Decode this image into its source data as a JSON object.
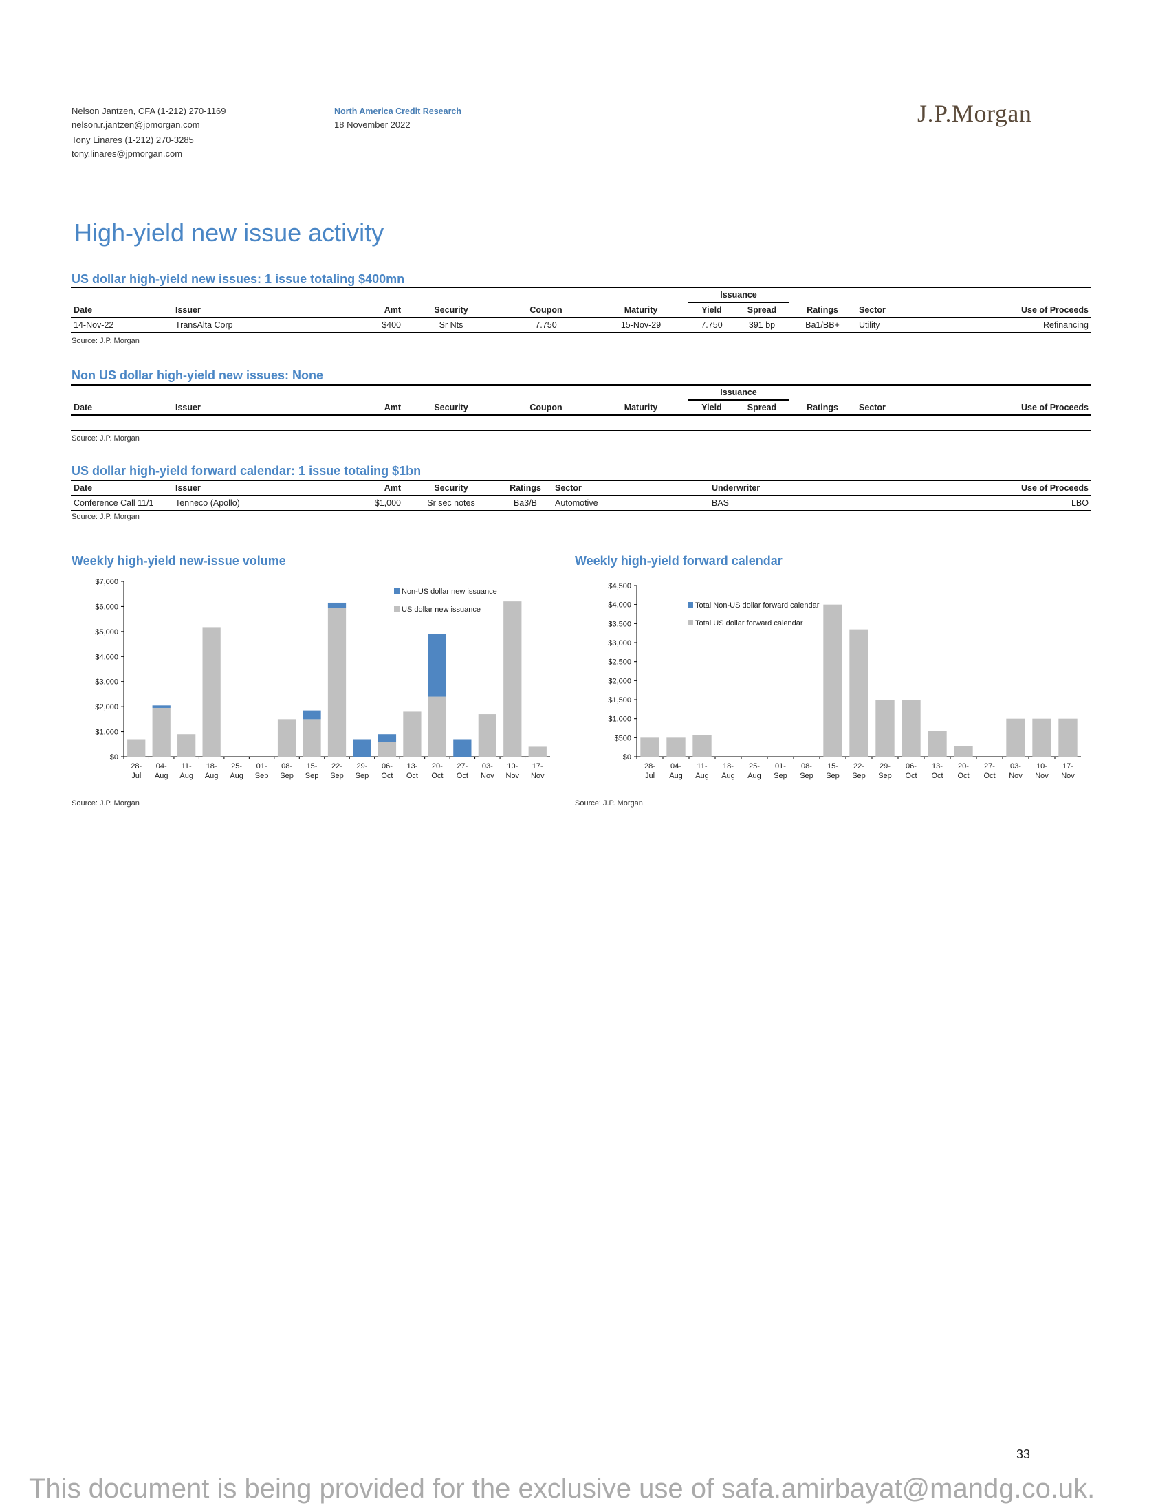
{
  "header": {
    "author1": "Nelson Jantzen, CFA (1-212) 270-1169",
    "email1": "nelson.r.jantzen@jpmorgan.com",
    "author2": "Tony Linares (1-212) 270-3285",
    "email2": "tony.linares@jpmorgan.com",
    "dept": "North America Credit Research",
    "date": "18 November 2022",
    "logo": "J.P.Morgan"
  },
  "page_title": "High-yield new issue activity",
  "table1": {
    "title": "US dollar high-yield new issues: 1 issue totaling $400mn",
    "group_header": "Issuance",
    "columns": [
      "Date",
      "Issuer",
      "Amt",
      "Security",
      "Coupon",
      "Maturity",
      "Yield",
      "Spread",
      "Ratings",
      "Sector",
      "Use of Proceeds"
    ],
    "row": [
      "14-Nov-22",
      "TransAlta Corp",
      "$400",
      "Sr Nts",
      "7.750",
      "15-Nov-29",
      "7.750",
      "391 bp",
      "Ba1/BB+",
      "Utility",
      "Refinancing"
    ],
    "source": "Source: J.P. Morgan"
  },
  "table2": {
    "title": "Non US dollar high-yield new issues: None",
    "group_header": "Issuance",
    "columns": [
      "Date",
      "Issuer",
      "Amt",
      "Security",
      "Coupon",
      "Maturity",
      "Yield",
      "Spread",
      "Ratings",
      "Sector",
      "Use of Proceeds"
    ],
    "source": "Source: J.P. Morgan"
  },
  "table3": {
    "title": "US dollar high-yield forward calendar: 1 issue totaling $1bn",
    "columns": [
      "Date",
      "Issuer",
      "Amt",
      "Security",
      "Ratings",
      "Sector",
      "Underwriter",
      "Use of Proceeds"
    ],
    "row": [
      "Conference Call 11/1",
      "Tenneco (Apollo)",
      "$1,000",
      "Sr sec notes",
      "Ba3/B",
      "Automotive",
      "BAS",
      "LBO"
    ],
    "source": "Source: J.P. Morgan"
  },
  "colors": {
    "us": "#c0c0c0",
    "nonus": "#4f86c2"
  },
  "chart_data": [
    {
      "type": "bar",
      "stacked": true,
      "title": "Weekly high-yield new-issue volume",
      "categories": [
        "28-Jul",
        "04-Aug",
        "11-Aug",
        "18-Aug",
        "25-Aug",
        "01-Sep",
        "08-Sep",
        "15-Sep",
        "22-Sep",
        "29-Sep",
        "06-Oct",
        "13-Oct",
        "20-Oct",
        "27-Oct",
        "03-Nov",
        "10-Nov",
        "17-Nov"
      ],
      "ylim": [
        0,
        7000
      ],
      "yticks": [
        "$0",
        "$1,000",
        "$2,000",
        "$3,000",
        "$4,000",
        "$5,000",
        "$6,000",
        "$7,000"
      ],
      "legend_position": "top-right",
      "series": [
        {
          "name": "Non-US dollar new issuance",
          "values": [
            0,
            100,
            0,
            0,
            0,
            0,
            0,
            350,
            200,
            700,
            300,
            0,
            2500,
            700,
            0,
            0,
            0
          ]
        },
        {
          "name": "US dollar new issuance",
          "values": [
            700,
            1950,
            900,
            5150,
            0,
            0,
            1500,
            1500,
            5950,
            0,
            600,
            1800,
            2400,
            0,
            1700,
            6200,
            400
          ]
        }
      ],
      "source": "Source: J.P. Morgan"
    },
    {
      "type": "bar",
      "stacked": true,
      "title": "Weekly high-yield forward calendar",
      "categories": [
        "28-Jul",
        "04-Aug",
        "11-Aug",
        "18-Aug",
        "25-Aug",
        "01-Sep",
        "08-Sep",
        "15-Sep",
        "22-Sep",
        "29-Sep",
        "06-Oct",
        "13-Oct",
        "20-Oct",
        "27-Oct",
        "03-Nov",
        "10-Nov",
        "17-Nov"
      ],
      "ylim": [
        0,
        4500
      ],
      "yticks": [
        "$0",
        "$500",
        "$1,000",
        "$1,500",
        "$2,000",
        "$2,500",
        "$3,000",
        "$3,500",
        "$4,000",
        "$4,500"
      ],
      "legend_position": "top-left",
      "series": [
        {
          "name": "Total Non-US dollar forward calendar",
          "values": [
            0,
            0,
            0,
            0,
            0,
            0,
            0,
            0,
            0,
            0,
            0,
            0,
            0,
            0,
            0,
            0,
            0
          ]
        },
        {
          "name": "Total US dollar forward calendar",
          "values": [
            500,
            500,
            575,
            0,
            0,
            0,
            0,
            4000,
            3350,
            1500,
            1500,
            675,
            275,
            0,
            1000,
            1000,
            1000
          ]
        }
      ],
      "source": "Source: J.P. Morgan"
    }
  ],
  "page_number": "33",
  "footer": "This document is being provided for the exclusive use of safa.amirbayat@mandg.co.uk."
}
